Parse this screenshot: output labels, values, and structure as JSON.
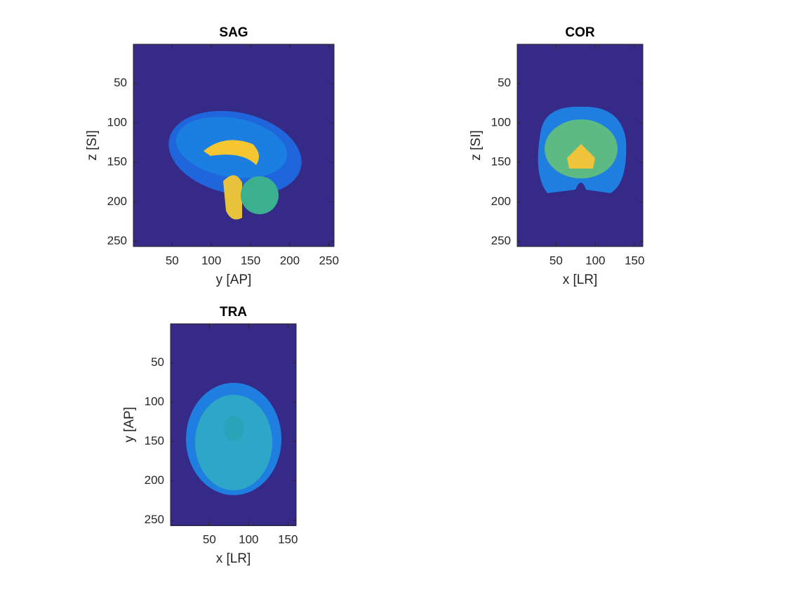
{
  "chart_data": [
    {
      "type": "image",
      "title": "SAG",
      "xlabel": "y [AP]",
      "ylabel": "z [SI]",
      "xlim": [
        0.5,
        256.5
      ],
      "ylim": [
        0.5,
        256.5
      ],
      "ydir": "reverse",
      "xticks": [
        50,
        100,
        150,
        200,
        250
      ],
      "yticks": [
        50,
        100,
        150,
        200,
        250
      ]
    },
    {
      "type": "image",
      "title": "COR",
      "xlabel": "x [LR]",
      "ylabel": "z [SI]",
      "xlim": [
        0.5,
        160.5
      ],
      "ylim": [
        0.5,
        256.5
      ],
      "ydir": "reverse",
      "xticks": [
        50,
        100,
        150
      ],
      "yticks": [
        50,
        100,
        150,
        200,
        250
      ]
    },
    {
      "type": "image",
      "title": "TRA",
      "xlabel": "x [LR]",
      "ylabel": "y [AP]",
      "xlim": [
        0.5,
        160.5
      ],
      "ylim": [
        0.5,
        256.5
      ],
      "ydir": "reverse",
      "xticks": [
        50,
        100,
        150
      ],
      "yticks": [
        50,
        100,
        150,
        200,
        250
      ]
    }
  ]
}
